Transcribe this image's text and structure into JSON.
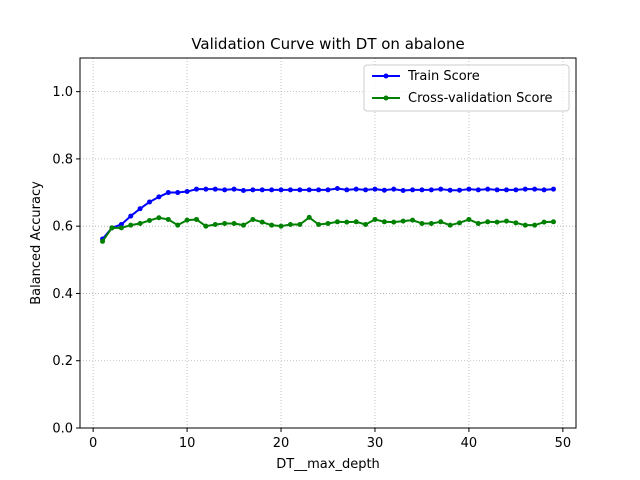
{
  "chart_data": {
    "type": "line",
    "title": "Validation Curve with DT on abalone",
    "xlabel": "DT__max_depth",
    "ylabel": "Balanced Accuracy",
    "xlim": [
      -1.4,
      51.4
    ],
    "ylim": [
      0.0,
      1.1
    ],
    "xticks": [
      0,
      10,
      20,
      30,
      40,
      50
    ],
    "yticks": [
      0.0,
      0.2,
      0.4,
      0.6,
      0.8,
      1.0
    ],
    "xtick_labels": [
      "0",
      "10",
      "20",
      "30",
      "40",
      "50"
    ],
    "ytick_labels": [
      "0.0",
      "0.2",
      "0.4",
      "0.6",
      "0.8",
      "1.0"
    ],
    "grid": true,
    "grid_style": "dotted",
    "legend_position": "upper right",
    "x": [
      1,
      2,
      3,
      4,
      5,
      6,
      7,
      8,
      9,
      10,
      11,
      12,
      13,
      14,
      15,
      16,
      17,
      18,
      19,
      20,
      21,
      22,
      23,
      24,
      25,
      26,
      27,
      28,
      29,
      30,
      31,
      32,
      33,
      34,
      35,
      36,
      37,
      38,
      39,
      40,
      41,
      42,
      43,
      44,
      45,
      46,
      47,
      48,
      49
    ],
    "series": [
      {
        "name": "Train Score",
        "color": "#0000ff",
        "values": [
          0.562,
          0.595,
          0.605,
          0.63,
          0.652,
          0.672,
          0.687,
          0.7,
          0.7,
          0.703,
          0.71,
          0.71,
          0.71,
          0.708,
          0.71,
          0.706,
          0.708,
          0.708,
          0.708,
          0.708,
          0.708,
          0.708,
          0.708,
          0.708,
          0.708,
          0.712,
          0.708,
          0.71,
          0.708,
          0.71,
          0.707,
          0.71,
          0.706,
          0.708,
          0.708,
          0.708,
          0.71,
          0.707,
          0.707,
          0.71,
          0.708,
          0.71,
          0.708,
          0.708,
          0.708,
          0.71,
          0.71,
          0.708,
          0.71
        ]
      },
      {
        "name": "Cross-validation Score",
        "color": "#008000",
        "values": [
          0.555,
          0.595,
          0.595,
          0.603,
          0.608,
          0.617,
          0.625,
          0.62,
          0.603,
          0.618,
          0.62,
          0.6,
          0.605,
          0.608,
          0.608,
          0.603,
          0.62,
          0.612,
          0.603,
          0.6,
          0.605,
          0.605,
          0.626,
          0.605,
          0.608,
          0.613,
          0.612,
          0.613,
          0.605,
          0.62,
          0.613,
          0.612,
          0.615,
          0.618,
          0.608,
          0.608,
          0.613,
          0.603,
          0.61,
          0.62,
          0.608,
          0.613,
          0.612,
          0.615,
          0.61,
          0.603,
          0.603,
          0.612,
          0.613
        ]
      }
    ]
  }
}
